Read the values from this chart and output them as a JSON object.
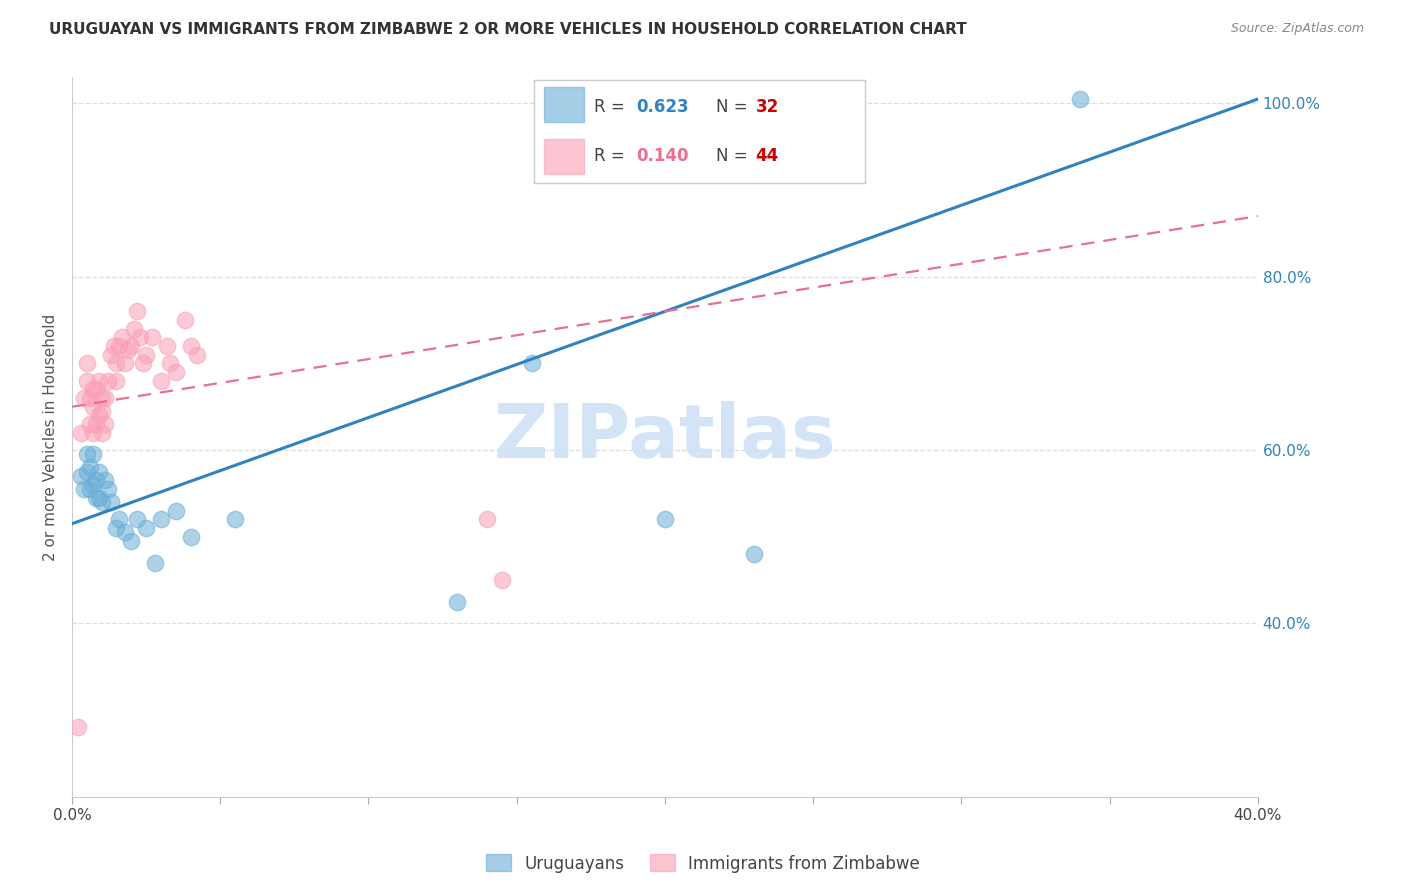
{
  "title": "URUGUAYAN VS IMMIGRANTS FROM ZIMBABWE 2 OR MORE VEHICLES IN HOUSEHOLD CORRELATION CHART",
  "source": "Source: ZipAtlas.com",
  "ylabel": "2 or more Vehicles in Household",
  "xlim": [
    0.0,
    0.4
  ],
  "ylim": [
    0.2,
    1.03
  ],
  "xticks": [
    0.0,
    0.05,
    0.1,
    0.15,
    0.2,
    0.25,
    0.3,
    0.35,
    0.4
  ],
  "xtick_labels": [
    "0.0%",
    "",
    "",
    "",
    "",
    "",
    "",
    "",
    "40.0%"
  ],
  "yticks_right": [
    0.4,
    0.6,
    0.8,
    1.0
  ],
  "ytick_labels_right": [
    "40.0%",
    "60.0%",
    "80.0%",
    "100.0%"
  ],
  "uruguayans_x": [
    0.003,
    0.004,
    0.005,
    0.005,
    0.006,
    0.006,
    0.007,
    0.007,
    0.008,
    0.008,
    0.009,
    0.009,
    0.01,
    0.011,
    0.012,
    0.013,
    0.015,
    0.016,
    0.018,
    0.02,
    0.022,
    0.025,
    0.028,
    0.03,
    0.035,
    0.04,
    0.055,
    0.13,
    0.155,
    0.2,
    0.23,
    0.34
  ],
  "uruguayans_y": [
    0.57,
    0.555,
    0.575,
    0.595,
    0.555,
    0.58,
    0.56,
    0.595,
    0.545,
    0.565,
    0.545,
    0.575,
    0.54,
    0.565,
    0.555,
    0.54,
    0.51,
    0.52,
    0.505,
    0.495,
    0.52,
    0.51,
    0.47,
    0.52,
    0.53,
    0.5,
    0.52,
    0.425,
    0.7,
    0.52,
    0.48,
    1.005
  ],
  "zimbabwe_x": [
    0.002,
    0.003,
    0.004,
    0.005,
    0.005,
    0.006,
    0.006,
    0.007,
    0.007,
    0.007,
    0.008,
    0.008,
    0.009,
    0.009,
    0.01,
    0.01,
    0.01,
    0.011,
    0.011,
    0.012,
    0.013,
    0.014,
    0.015,
    0.015,
    0.016,
    0.017,
    0.018,
    0.019,
    0.02,
    0.021,
    0.022,
    0.023,
    0.024,
    0.025,
    0.027,
    0.03,
    0.032,
    0.033,
    0.035,
    0.038,
    0.04,
    0.042,
    0.14,
    0.145
  ],
  "zimbabwe_y": [
    0.28,
    0.62,
    0.66,
    0.68,
    0.7,
    0.63,
    0.66,
    0.62,
    0.65,
    0.67,
    0.63,
    0.67,
    0.64,
    0.68,
    0.62,
    0.645,
    0.66,
    0.63,
    0.66,
    0.68,
    0.71,
    0.72,
    0.68,
    0.7,
    0.72,
    0.73,
    0.7,
    0.715,
    0.72,
    0.74,
    0.76,
    0.73,
    0.7,
    0.71,
    0.73,
    0.68,
    0.72,
    0.7,
    0.69,
    0.75,
    0.72,
    0.71,
    0.52,
    0.45
  ],
  "blue_color": "#6baed6",
  "pink_color": "#fa9fb5",
  "blue_line_color": "#3182bd",
  "pink_line_color": "#e87090",
  "watermark_text": "ZIPatlas",
  "watermark_color": "#cce0f5",
  "background_color": "#ffffff",
  "grid_color": "#dddddd",
  "legend_label_uru": "Uruguayans",
  "legend_label_zim": "Immigrants from Zimbabwe"
}
